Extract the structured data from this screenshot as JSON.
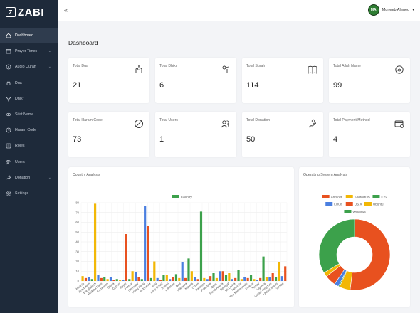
{
  "app": {
    "logo_mark": "Z",
    "logo_text": "ZABI"
  },
  "user": {
    "name": "Muneeb Ahmed",
    "initials": "MA"
  },
  "page_title": "Dashboard",
  "sidebar": {
    "items": [
      {
        "label": "Dashboard",
        "icon": "home-icon",
        "active": true,
        "has_submenu": false
      },
      {
        "label": "Prayer Times",
        "icon": "calendar-icon",
        "active": false,
        "has_submenu": true
      },
      {
        "label": "Audio Quran",
        "icon": "audio-icon",
        "active": false,
        "has_submenu": true
      },
      {
        "label": "Dua",
        "icon": "dua-icon",
        "active": false,
        "has_submenu": false
      },
      {
        "label": "Dhikr",
        "icon": "dhikr-icon",
        "active": false,
        "has_submenu": false
      },
      {
        "label": "Sifat Name",
        "icon": "eye-icon",
        "active": false,
        "has_submenu": false
      },
      {
        "label": "Haram Code",
        "icon": "clock-icon",
        "active": false,
        "has_submenu": false
      },
      {
        "label": "Roles",
        "icon": "roles-icon",
        "active": false,
        "has_submenu": false
      },
      {
        "label": "Users",
        "icon": "users-icon",
        "active": false,
        "has_submenu": false
      },
      {
        "label": "Donation",
        "icon": "donation-icon",
        "active": false,
        "has_submenu": true
      },
      {
        "label": "Settings",
        "icon": "settings-icon",
        "active": false,
        "has_submenu": false
      }
    ]
  },
  "stats": [
    {
      "label": "Total Dua",
      "value": "21",
      "icon": "dua-hands-icon"
    },
    {
      "label": "Total Dhikr",
      "value": "6",
      "icon": "tasbih-icon"
    },
    {
      "label": "Total Surah",
      "value": "114",
      "icon": "book-icon"
    },
    {
      "label": "Total Allah Name",
      "value": "99",
      "icon": "allah-icon"
    },
    {
      "label": "Total Haram Code",
      "value": "73",
      "icon": "forbidden-icon"
    },
    {
      "label": "Total Users",
      "value": "1",
      "icon": "users-icon"
    },
    {
      "label": "Total Donation",
      "value": "50",
      "icon": "donation-hand-icon"
    },
    {
      "label": "Total Payment Method",
      "value": "4",
      "icon": "payment-icon"
    }
  ],
  "country_panel_title": "Country Analysis",
  "os_panel_title": "Operating System Analysis",
  "chart_data": [
    {
      "type": "bar",
      "title": "Country Analysis",
      "legend": [
        "Country"
      ],
      "legend_position": "top",
      "grid": true,
      "ylim": [
        0,
        80
      ],
      "yticks": [
        0,
        10,
        20,
        30,
        40,
        50,
        60,
        70,
        80
      ],
      "categories": [
        "Albania",
        "Azerbaijan",
        "Bangladesh",
        "Burkina Faso",
        "Cameroon",
        "China",
        "Cyprus",
        "Egypt",
        "France",
        "Germany",
        "Hong Kong",
        "Indonesia",
        "Iraq",
        "Ivory Coast",
        "Jordan",
        "Lebanon",
        "Mali",
        "Malaysia",
        "Nigeria",
        "Oman",
        "Pakistan",
        "Palestine",
        "Qatar",
        "Saudi Arabia",
        "Senegal",
        "Sri Lanka",
        "Tanzania",
        "The Netherlands",
        "Tunisia",
        "Turkey",
        "Uganda",
        "United Kingdom",
        "United States",
        "Yemen"
      ],
      "bars": [
        {
          "v": 5,
          "c": "#f2b705"
        },
        {
          "v": 3,
          "c": "#e8511f"
        },
        {
          "v": 4,
          "c": "#4a7fe0"
        },
        {
          "v": 2,
          "c": "#3ca14b"
        },
        {
          "v": 79,
          "c": "#f2b705"
        },
        {
          "v": 6,
          "c": "#4a7fe0"
        },
        {
          "v": 3,
          "c": "#e8511f"
        },
        {
          "v": 4,
          "c": "#3ca14b"
        },
        {
          "v": 2,
          "c": "#f2b705"
        },
        {
          "v": 4,
          "c": "#4a7fe0"
        },
        {
          "v": 1,
          "c": "#e8511f"
        },
        {
          "v": 2,
          "c": "#3ca14b"
        },
        {
          "v": 1,
          "c": "#f2b705"
        },
        {
          "v": 1,
          "c": "#4a7fe0"
        },
        {
          "v": 48,
          "c": "#e8511f"
        },
        {
          "v": 2,
          "c": "#3ca14b"
        },
        {
          "v": 10,
          "c": "#f2b705"
        },
        {
          "v": 9,
          "c": "#4a7fe0"
        },
        {
          "v": 4,
          "c": "#e8511f"
        },
        {
          "v": 2,
          "c": "#3ca14b"
        },
        {
          "v": 77,
          "c": "#4a7fe0"
        },
        {
          "v": 56,
          "c": "#e8511f"
        },
        {
          "v": 3,
          "c": "#3ca14b"
        },
        {
          "v": 20,
          "c": "#f2b705"
        },
        {
          "v": 3,
          "c": "#4a7fe0"
        },
        {
          "v": 1,
          "c": "#e8511f"
        },
        {
          "v": 6,
          "c": "#3ca14b"
        },
        {
          "v": 6,
          "c": "#f2b705"
        },
        {
          "v": 2,
          "c": "#4a7fe0"
        },
        {
          "v": 4,
          "c": "#e8511f"
        },
        {
          "v": 7,
          "c": "#3ca14b"
        },
        {
          "v": 3,
          "c": "#f2b705"
        },
        {
          "v": 19,
          "c": "#4a7fe0"
        },
        {
          "v": 3,
          "c": "#e8511f"
        },
        {
          "v": 23,
          "c": "#3ca14b"
        },
        {
          "v": 10,
          "c": "#f2b705"
        },
        {
          "v": 4,
          "c": "#4a7fe0"
        },
        {
          "v": 2,
          "c": "#e8511f"
        },
        {
          "v": 71,
          "c": "#3ca14b"
        },
        {
          "v": 3,
          "c": "#f2b705"
        },
        {
          "v": 2,
          "c": "#4a7fe0"
        },
        {
          "v": 5,
          "c": "#e8511f"
        },
        {
          "v": 8,
          "c": "#3ca14b"
        },
        {
          "v": 3,
          "c": "#f2b705"
        },
        {
          "v": 10,
          "c": "#4a7fe0"
        },
        {
          "v": 10,
          "c": "#e8511f"
        },
        {
          "v": 6,
          "c": "#3ca14b"
        },
        {
          "v": 8,
          "c": "#f2b705"
        },
        {
          "v": 2,
          "c": "#4a7fe0"
        },
        {
          "v": 3,
          "c": "#e8511f"
        },
        {
          "v": 11,
          "c": "#3ca14b"
        },
        {
          "v": 2,
          "c": "#f2b705"
        },
        {
          "v": 4,
          "c": "#4a7fe0"
        },
        {
          "v": 3,
          "c": "#e8511f"
        },
        {
          "v": 6,
          "c": "#3ca14b"
        },
        {
          "v": 2,
          "c": "#f2b705"
        },
        {
          "v": 1,
          "c": "#4a7fe0"
        },
        {
          "v": 3,
          "c": "#e8511f"
        },
        {
          "v": 25,
          "c": "#3ca14b"
        },
        {
          "v": 4,
          "c": "#f2b705"
        },
        {
          "v": 4,
          "c": "#4a7fe0"
        },
        {
          "v": 8,
          "c": "#e8511f"
        },
        {
          "v": 4,
          "c": "#3ca14b"
        },
        {
          "v": 19,
          "c": "#f2b705"
        },
        {
          "v": 5,
          "c": "#4a7fe0"
        },
        {
          "v": 15,
          "c": "#e8511f"
        }
      ]
    },
    {
      "type": "pie",
      "title": "Operating System Analysis",
      "legend_position": "top",
      "labels": [
        "Android",
        "AndroidOS",
        "iOS",
        "Linux",
        "OS X",
        "Ubuntu",
        "Windows"
      ],
      "values": [
        52,
        5,
        0.5,
        2,
        5,
        2,
        33.5
      ],
      "colors": [
        "#e8511f",
        "#f2b705",
        "#3ca14b",
        "#4a7fe0",
        "#e8511f",
        "#f2b705",
        "#3ca14b"
      ]
    }
  ]
}
